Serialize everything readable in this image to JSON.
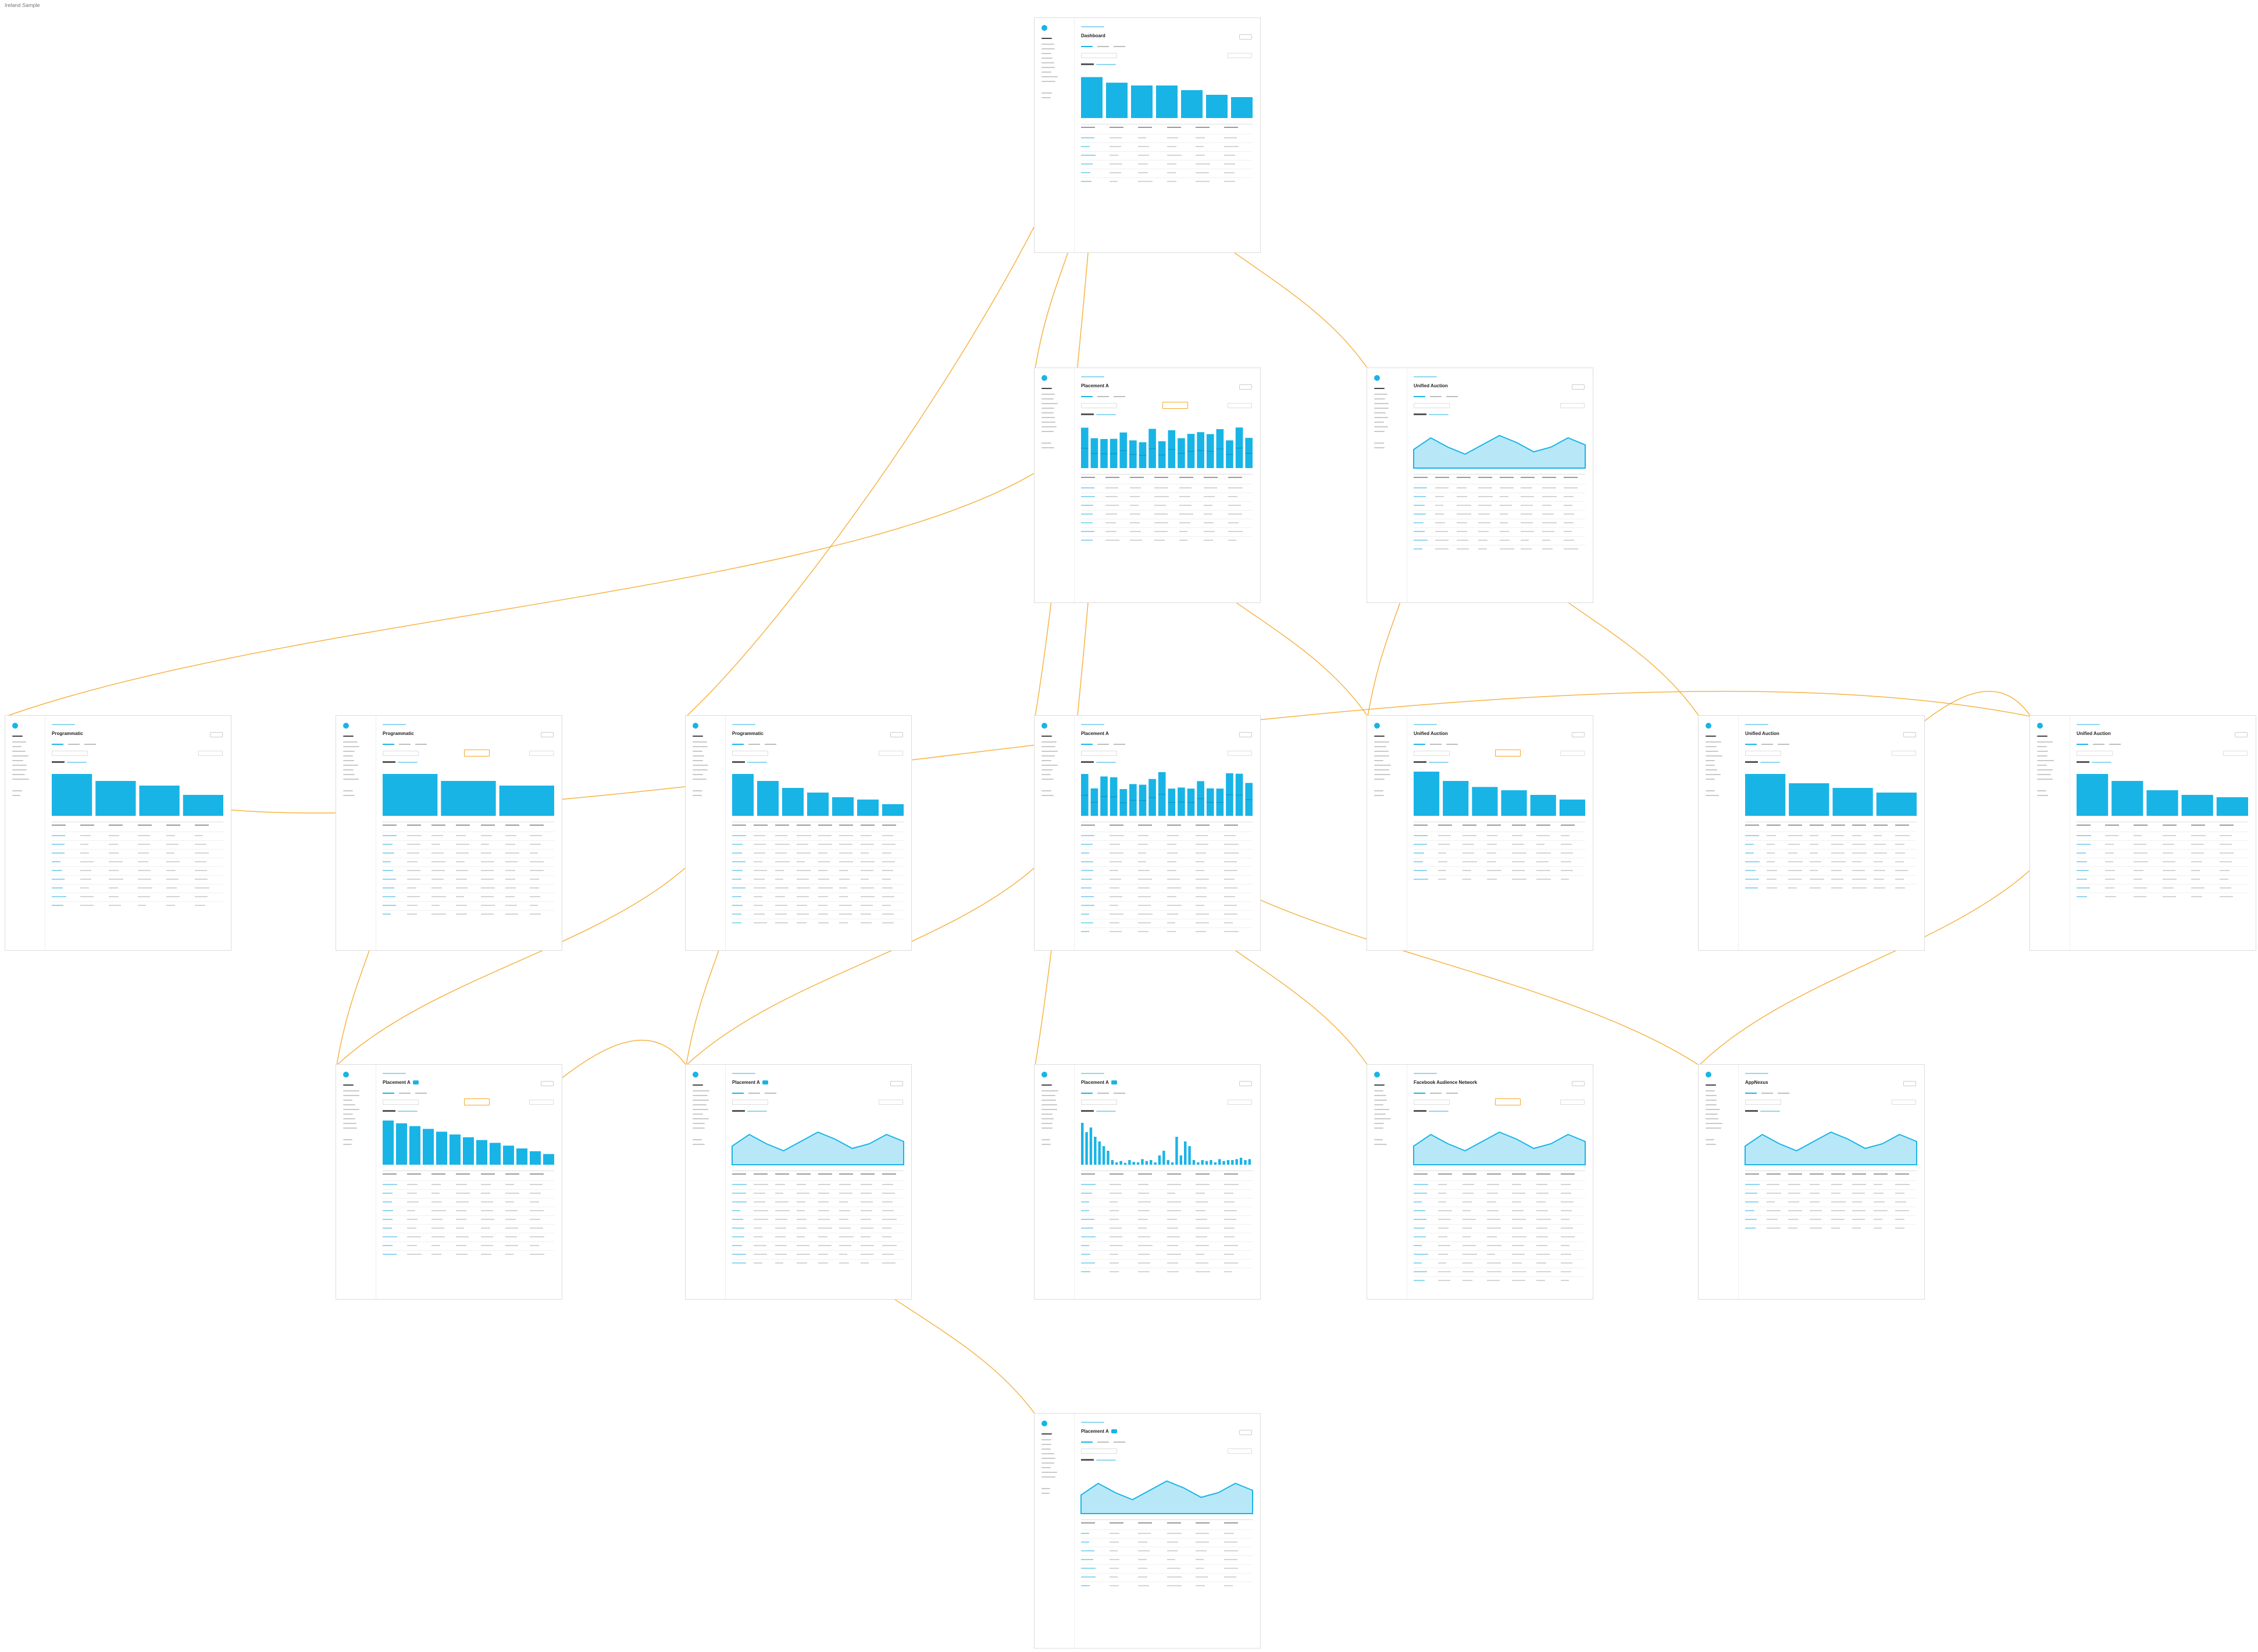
{
  "page": {
    "title": "Ireland Sample"
  },
  "colors": {
    "accent": "#19b4e6",
    "connector": "#f5a623",
    "frame_border": "#dcdcdc",
    "text": "#222222"
  },
  "screens": [
    {
      "id": "dashboard",
      "title": "Dashboard",
      "chart": "bars",
      "bars": [
        0.88,
        0.76,
        0.7,
        0.7,
        0.6,
        0.5,
        0.45
      ]
    },
    {
      "id": "placement-a",
      "title": "Placement A",
      "chart": "bars-dense"
    },
    {
      "id": "unified-auction-1",
      "title": "Unified Auction",
      "chart": "area"
    },
    {
      "id": "programmatic-1",
      "title": "Programmatic",
      "chart": "bars",
      "bars": [
        0.9,
        0.75,
        0.65,
        0.45
      ]
    },
    {
      "id": "programmatic-2",
      "title": "Programmatic",
      "chart": "bars",
      "bars": [
        0.9,
        0.75,
        0.65
      ]
    },
    {
      "id": "programmatic-3",
      "title": "Programmatic",
      "chart": "bars",
      "bars": [
        0.9,
        0.75,
        0.6,
        0.5,
        0.4,
        0.35,
        0.25
      ]
    },
    {
      "id": "placement-a-2",
      "title": "Placement A",
      "chart": "bars-dense"
    },
    {
      "id": "unified-auction-2",
      "title": "Unified Auction",
      "chart": "bars",
      "bars": [
        0.95,
        0.75,
        0.62,
        0.55,
        0.45,
        0.35
      ]
    },
    {
      "id": "unified-auction-3",
      "title": "Unified Auction",
      "chart": "bars",
      "bars": [
        0.9,
        0.7,
        0.6,
        0.5
      ]
    },
    {
      "id": "unified-auction-4",
      "title": "Unified Auction",
      "chart": "bars",
      "bars": [
        0.9,
        0.75,
        0.55,
        0.45,
        0.4
      ]
    },
    {
      "id": "placement-a-3",
      "title": "Placement A",
      "chart": "bars-desc"
    },
    {
      "id": "placement-a-4",
      "title": "Placement A",
      "chart": "area"
    },
    {
      "id": "placement-a-5",
      "title": "Placement A",
      "chart": "sparse-bars"
    },
    {
      "id": "facebook-audience-network",
      "title": "Facebook Audience Network",
      "chart": "area"
    },
    {
      "id": "appnexus",
      "title": "AppNexus",
      "chart": "area"
    },
    {
      "id": "placement-a-6",
      "title": "Placement A",
      "chart": "area"
    }
  ],
  "connections": [
    [
      "dashboard",
      "placement-a"
    ],
    [
      "dashboard",
      "unified-auction-1"
    ],
    [
      "dashboard",
      "programmatic-3"
    ],
    [
      "dashboard",
      "placement-a-2"
    ],
    [
      "placement-a",
      "programmatic-1"
    ],
    [
      "placement-a",
      "unified-auction-2"
    ],
    [
      "placement-a",
      "placement-a-5"
    ],
    [
      "unified-auction-1",
      "unified-auction-3"
    ],
    [
      "unified-auction-1",
      "unified-auction-2"
    ],
    [
      "programmatic-2",
      "placement-a-3"
    ],
    [
      "programmatic-3",
      "placement-a-3"
    ],
    [
      "programmatic-3",
      "placement-a-4"
    ],
    [
      "placement-a-2",
      "facebook-audience-network"
    ],
    [
      "placement-a-2",
      "appnexus"
    ],
    [
      "placement-a-2",
      "placement-a-4"
    ],
    [
      "unified-auction-3",
      "unified-auction-4"
    ],
    [
      "unified-auction-4",
      "appnexus"
    ],
    [
      "placement-a-3",
      "placement-a-4"
    ],
    [
      "placement-a-4",
      "placement-a-6"
    ],
    [
      "programmatic-1",
      "unified-auction-4"
    ]
  ]
}
